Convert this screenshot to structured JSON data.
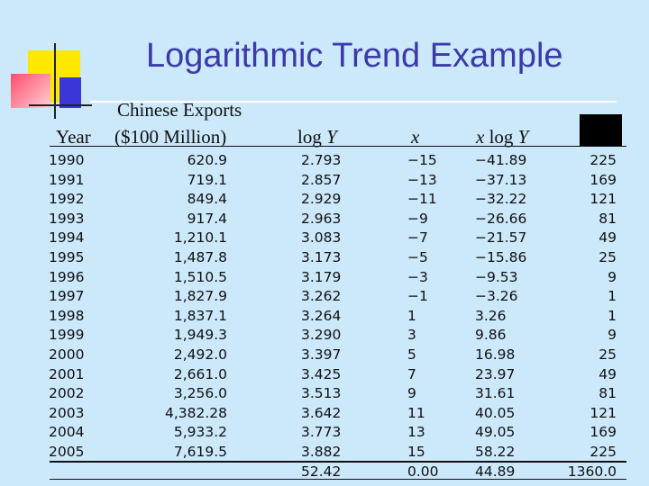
{
  "title": "Logarithmic Trend Example",
  "headers": {
    "year": "Year",
    "exports_line1": "Chinese Exports",
    "exports_line2": "($100 Million)",
    "logy_prefix": "log",
    "logy_var": "Y",
    "x": "x",
    "xlogy_x": "x",
    "xlogy_mid": "log",
    "xlogy_y": "Y"
  },
  "rows": [
    {
      "year": "1990",
      "exports": "620.9",
      "logy": "2.793",
      "x": "−15",
      "xlogy": "−41.89",
      "xsq": "225"
    },
    {
      "year": "1991",
      "exports": "719.1",
      "logy": "2.857",
      "x": "−13",
      "xlogy": "−37.13",
      "xsq": "169"
    },
    {
      "year": "1992",
      "exports": "849.4",
      "logy": "2.929",
      "x": "−11",
      "xlogy": "−32.22",
      "xsq": "121"
    },
    {
      "year": "1993",
      "exports": "917.4",
      "logy": "2.963",
      "x": "−9",
      "xlogy": "−26.66",
      "xsq": "81"
    },
    {
      "year": "1994",
      "exports": "1,210.1",
      "logy": "3.083",
      "x": "−7",
      "xlogy": "−21.57",
      "xsq": "49"
    },
    {
      "year": "1995",
      "exports": "1,487.8",
      "logy": "3.173",
      "x": "−5",
      "xlogy": "−15.86",
      "xsq": "25"
    },
    {
      "year": "1996",
      "exports": "1,510.5",
      "logy": "3.179",
      "x": "−3",
      "xlogy": "−9.53",
      "xsq": "9"
    },
    {
      "year": "1997",
      "exports": "1,827.9",
      "logy": "3.262",
      "x": "−1",
      "xlogy": "−3.26",
      "xsq": "1"
    },
    {
      "year": "1998",
      "exports": "1,837.1",
      "logy": "3.264",
      "x": "1",
      "xlogy": "3.26",
      "xsq": "1"
    },
    {
      "year": "1999",
      "exports": "1,949.3",
      "logy": "3.290",
      "x": "3",
      "xlogy": "9.86",
      "xsq": "9"
    },
    {
      "year": "2000",
      "exports": "2,492.0",
      "logy": "3.397",
      "x": "5",
      "xlogy": "16.98",
      "xsq": "25"
    },
    {
      "year": "2001",
      "exports": "2,661.0",
      "logy": "3.425",
      "x": "7",
      "xlogy": "23.97",
      "xsq": "49"
    },
    {
      "year": "2002",
      "exports": "3,256.0",
      "logy": "3.513",
      "x": "9",
      "xlogy": "31.61",
      "xsq": "81"
    },
    {
      "year": "2003",
      "exports": "4,382.28",
      "logy": "3.642",
      "x": "11",
      "xlogy": "40.05",
      "xsq": "121"
    },
    {
      "year": "2004",
      "exports": "5,933.2",
      "logy": "3.773",
      "x": "13",
      "xlogy": "49.05",
      "xsq": "169"
    },
    {
      "year": "2005",
      "exports": "7,619.5",
      "logy": "3.882",
      "x": "15",
      "xlogy": "58.22",
      "xsq": "225"
    }
  ],
  "totals": {
    "year": "",
    "exports": "",
    "logy": "52.42",
    "x": "0.00",
    "xlogy": "44.89",
    "xsq": "1360.0"
  },
  "colors": {
    "background": "#cce8fb",
    "title": "#3a3aa8",
    "yellow": "#ffe800",
    "red": "#ff4d6a",
    "blue": "#3a36d8"
  }
}
